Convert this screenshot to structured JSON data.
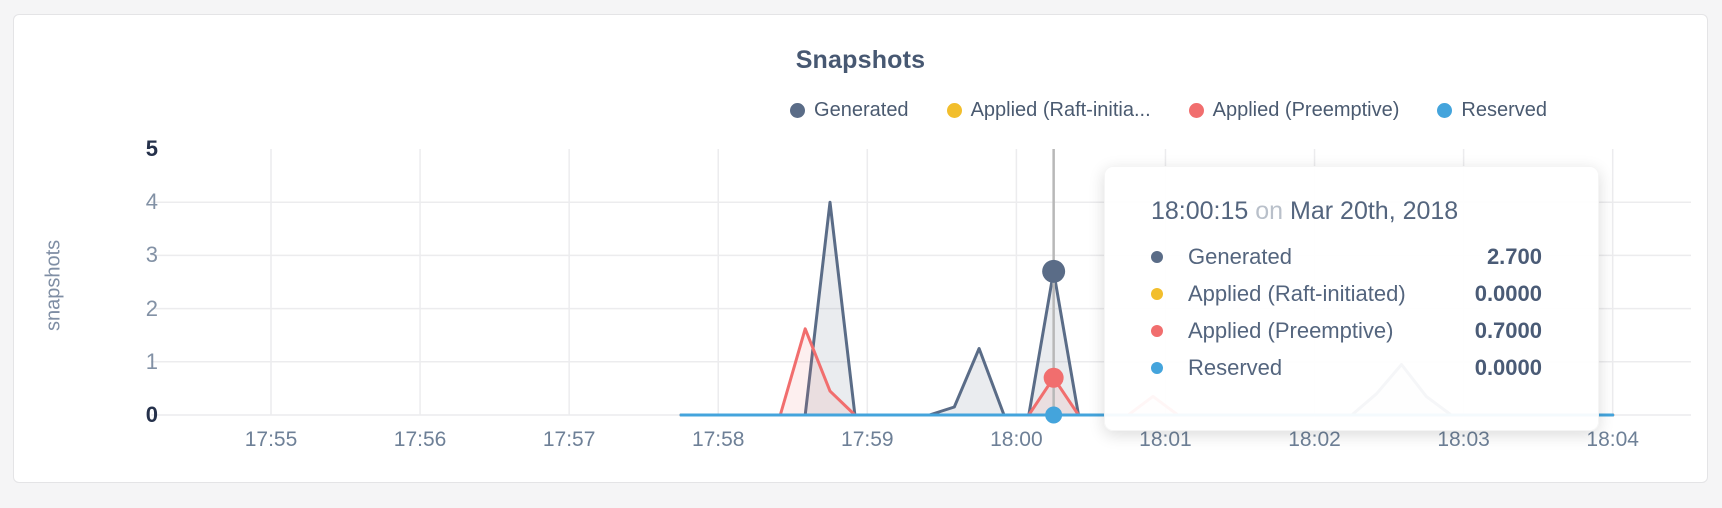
{
  "title": "Snapshots",
  "y_axis": {
    "label": "snapshots",
    "ticks": [
      "0",
      "1",
      "2",
      "3",
      "4",
      "5"
    ]
  },
  "x_axis": {
    "ticks": [
      "17:55",
      "17:56",
      "17:57",
      "17:58",
      "17:59",
      "18:00",
      "18:01",
      "18:02",
      "18:03",
      "18:04"
    ]
  },
  "legend": [
    {
      "label": "Generated",
      "color": "#5a6c87"
    },
    {
      "label": "Applied (Raft-initia...",
      "color": "#f2be2c"
    },
    {
      "label": "Applied (Preemptive)",
      "color": "#f16e6e"
    },
    {
      "label": "Reserved",
      "color": "#44a4dc"
    }
  ],
  "tooltip": {
    "time": "18:00:15",
    "separator": "on",
    "date": "Mar 20th, 2018",
    "rows": [
      {
        "label": "Generated",
        "value": "2.700",
        "color": "#5a6c87"
      },
      {
        "label": "Applied (Raft-initiated)",
        "value": "0.0000",
        "color": "#f2be2c"
      },
      {
        "label": "Applied (Preemptive)",
        "value": "0.7000",
        "color": "#f16e6e"
      },
      {
        "label": "Reserved",
        "value": "0.0000",
        "color": "#44a4dc"
      }
    ]
  },
  "colors": {
    "grid": "#ececee",
    "crosshair": "#b8b8b8",
    "page_bg": "#f5f5f6",
    "card_border": "#e4e4e6",
    "title_text": "#475872",
    "axis_text": "#8291a5",
    "axis_text_strong": "#25314b",
    "legend_text": "#4a5a70",
    "tooltip_text": "#54657e"
  },
  "chart_data": {
    "type": "area",
    "title": "Snapshots",
    "ylabel": "snapshots",
    "ylim": [
      0,
      5
    ],
    "y_ticks": [
      0,
      1,
      2,
      3,
      4,
      5
    ],
    "grid": true,
    "legend_position": "top-right",
    "x_unit": "seconds since 17:55:00",
    "date": "Mar 20th, 2018",
    "x_tick_labels": [
      "17:55",
      "17:56",
      "17:57",
      "17:58",
      "17:59",
      "18:00",
      "18:01",
      "18:02",
      "18:03",
      "18:04"
    ],
    "x_tick_seconds": [
      0,
      60,
      120,
      180,
      240,
      300,
      360,
      420,
      480,
      540
    ],
    "series": [
      {
        "name": "Generated",
        "color": "#5a6c87",
        "fill_opacity": 0.13,
        "points": [
          [
            165,
            0
          ],
          [
            215,
            0
          ],
          [
            225,
            4.0
          ],
          [
            235,
            0
          ],
          [
            265,
            0
          ],
          [
            275,
            0.15
          ],
          [
            285,
            1.25
          ],
          [
            295,
            0
          ],
          [
            305,
            0
          ],
          [
            315,
            2.7
          ],
          [
            325,
            0
          ],
          [
            435,
            0
          ],
          [
            445,
            0.4
          ],
          [
            455,
            0.95
          ],
          [
            465,
            0.35
          ],
          [
            475,
            0
          ],
          [
            540,
            0
          ]
        ]
      },
      {
        "name": "Applied (Raft-initiated)",
        "color": "#f2be2c",
        "fill_opacity": 0,
        "points": [
          [
            165,
            0
          ],
          [
            540,
            0
          ]
        ]
      },
      {
        "name": "Applied (Preemptive)",
        "color": "#f16e6e",
        "fill_opacity": 0.11,
        "points": [
          [
            165,
            0
          ],
          [
            205,
            0
          ],
          [
            215,
            1.62
          ],
          [
            225,
            0.45
          ],
          [
            235,
            0
          ],
          [
            305,
            0
          ],
          [
            315,
            0.7
          ],
          [
            325,
            0
          ],
          [
            345,
            0
          ],
          [
            355,
            0.35
          ],
          [
            365,
            0
          ],
          [
            540,
            0
          ]
        ]
      },
      {
        "name": "Reserved",
        "color": "#44a4dc",
        "fill_opacity": 0,
        "points": [
          [
            165,
            0
          ],
          [
            540,
            0
          ]
        ]
      }
    ],
    "highlight": {
      "t": 315,
      "time_label": "18:00:15",
      "values": [
        2.7,
        0,
        0.7,
        0
      ],
      "dot_radii": [
        11.5,
        8,
        10,
        8.5
      ]
    }
  }
}
